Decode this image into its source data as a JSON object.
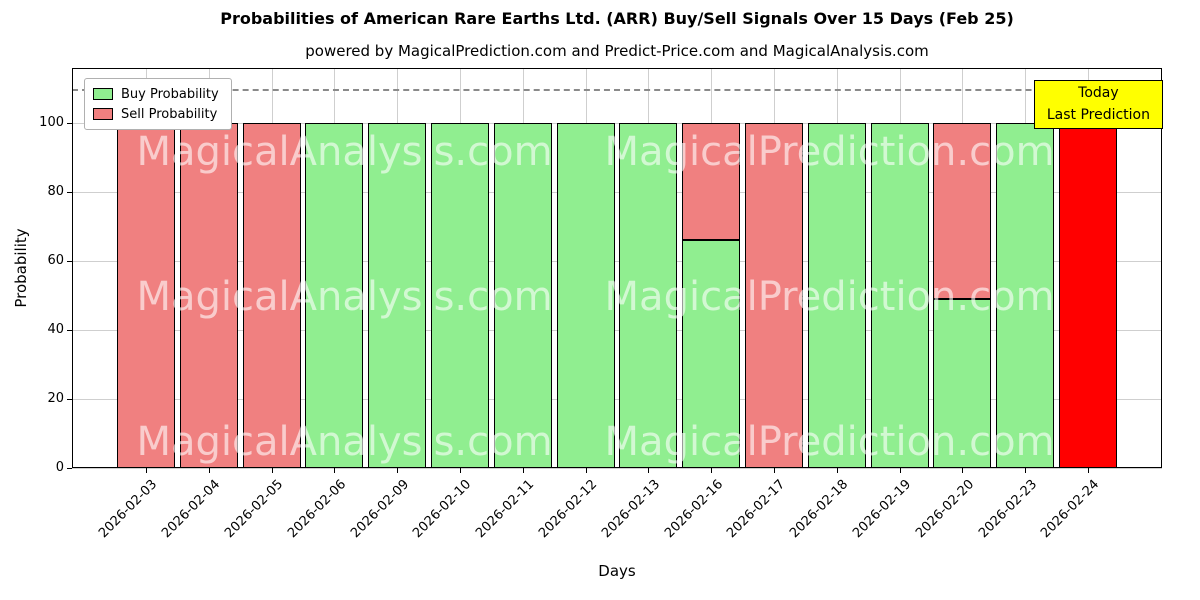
{
  "chart_data": {
    "type": "bar",
    "stacked": true,
    "title": "Probabilities of American Rare Earths Ltd. (ARR) Buy/Sell Signals Over 15 Days (Feb 25)",
    "subtitle": "powered by MagicalPrediction.com and Predict-Price.com and MagicalAnalysis.com",
    "xlabel": "Days",
    "ylabel": "Probability",
    "ylim": [
      0,
      116
    ],
    "yticks": [
      0,
      20,
      40,
      60,
      80,
      100
    ],
    "grid": true,
    "dashed_line_y": 110,
    "legend_position": "upper left",
    "bar_edge_color": "#000000",
    "categories": [
      "2026-02-03",
      "2026-02-04",
      "2026-02-05",
      "2026-02-06",
      "2026-02-09",
      "2026-02-10",
      "2026-02-11",
      "2026-02-12",
      "2026-02-13",
      "2026-02-16",
      "2026-02-17",
      "2026-02-18",
      "2026-02-19",
      "2026-02-20",
      "2026-02-23",
      "2026-02-24"
    ],
    "series": [
      {
        "name": "Buy Probability",
        "color": "#90EE90",
        "values": [
          0,
          0,
          0,
          100,
          100,
          100,
          100,
          100,
          100,
          66,
          0,
          100,
          100,
          49,
          100,
          0
        ]
      },
      {
        "name": "Sell Probability",
        "color": "#F08080",
        "values": [
          100,
          100,
          100,
          0,
          0,
          0,
          0,
          0,
          0,
          34,
          100,
          0,
          0,
          51,
          0,
          0
        ]
      },
      {
        "name": "Today Last Prediction",
        "color": "#FF0000",
        "in_legend": false,
        "values": [
          0,
          0,
          0,
          0,
          0,
          0,
          0,
          0,
          0,
          0,
          0,
          0,
          0,
          0,
          0,
          100
        ]
      }
    ]
  },
  "legend": {
    "items": [
      {
        "label": "Buy Probability",
        "color": "#90EE90"
      },
      {
        "label": "Sell Probability",
        "color": "#F08080"
      }
    ]
  },
  "annotation": {
    "line1": "Today",
    "line2": "Last Prediction",
    "bg": "#FFFF00"
  },
  "watermark": {
    "texts": [
      "MagicalAnalysis.com",
      "MagicalPrediction.com"
    ],
    "color": "rgba(255,255,255,0.6)"
  }
}
